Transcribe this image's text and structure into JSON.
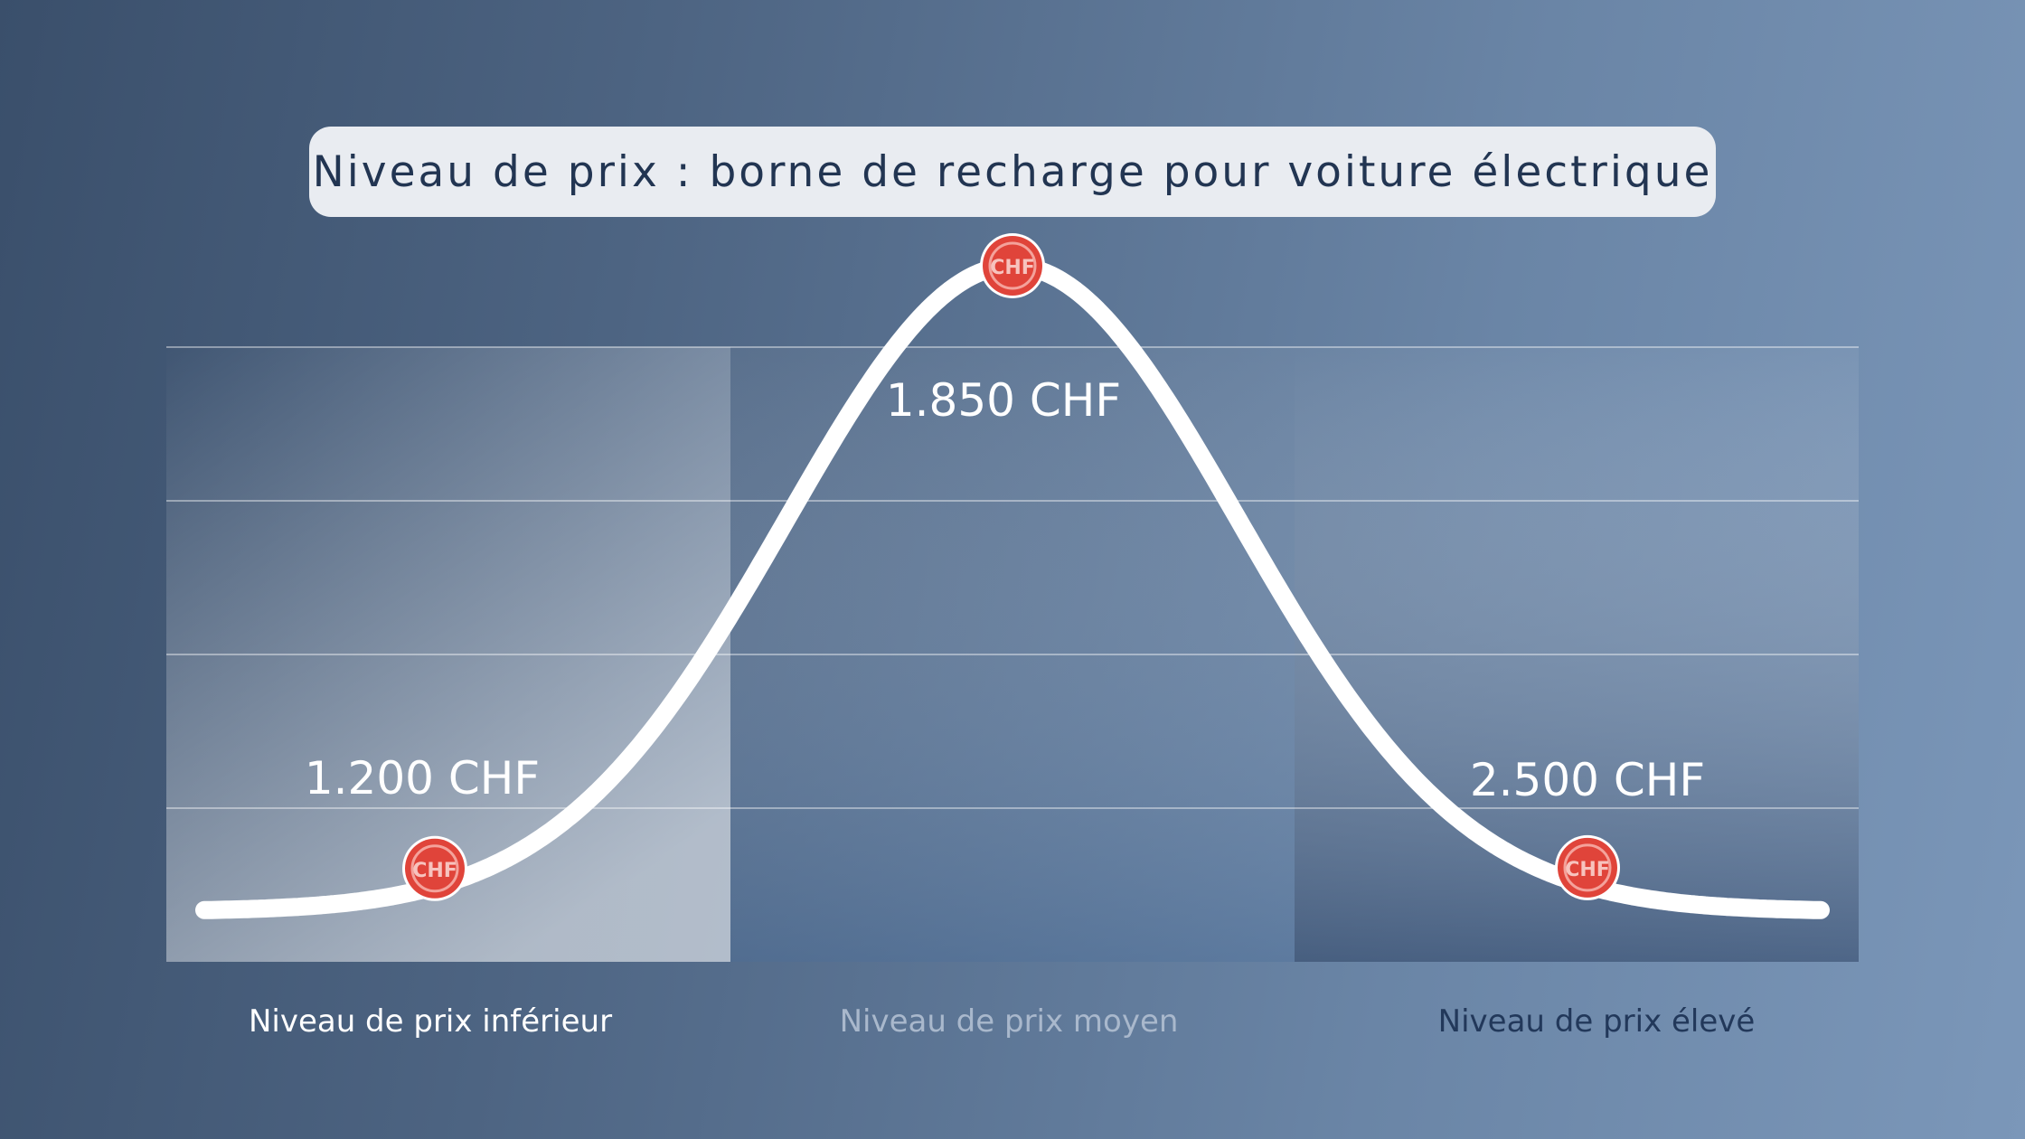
{
  "colors": {
    "marker": "#e0443a",
    "curve": "#ffffff",
    "title_bg": "#e9ecf1",
    "title_text": "#223552"
  },
  "marker_icon": "chf-coin-icon",
  "chart_data": {
    "type": "line",
    "title": "Niveau de prix : borne de recharge pour voiture électrique",
    "categories": [
      "Niveau de prix inférieur",
      "Niveau de prix moyen",
      "Niveau de prix élevé"
    ],
    "values": [
      1200,
      1850,
      2500
    ],
    "value_labels": [
      "1.200 CHF",
      "1.850 CHF",
      "2.500 CHF"
    ],
    "marker_text": "CHF",
    "curve_shape": "bell",
    "grid": true,
    "legend": "none"
  }
}
